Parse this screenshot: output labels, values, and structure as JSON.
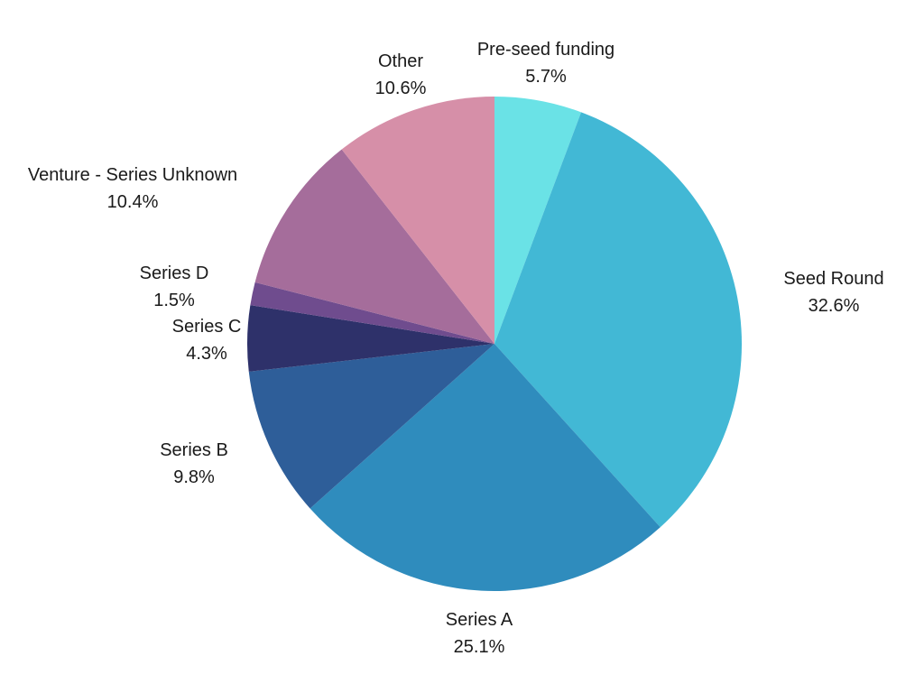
{
  "chart_data": {
    "type": "pie",
    "slices": [
      {
        "label": "Pre-seed funding",
        "value": 5.7,
        "value_label": "5.7%",
        "color": "#6ae2e6"
      },
      {
        "label": "Seed Round",
        "value": 32.6,
        "value_label": "32.6%",
        "color": "#42b8d5"
      },
      {
        "label": "Series A",
        "value": 25.1,
        "value_label": "25.1%",
        "color": "#2f8cbd"
      },
      {
        "label": "Series B",
        "value": 9.8,
        "value_label": "9.8%",
        "color": "#2e5e99"
      },
      {
        "label": "Series C",
        "value": 4.3,
        "value_label": "4.3%",
        "color": "#2e316a"
      },
      {
        "label": "Series D",
        "value": 1.5,
        "value_label": "1.5%",
        "color": "#6f4c8e"
      },
      {
        "label": "Venture - Series Unknown",
        "value": 10.4,
        "value_label": "10.4%",
        "color": "#a56d9b"
      },
      {
        "label": "Other",
        "value": 10.6,
        "value_label": "10.6%",
        "color": "#d68fa8"
      }
    ],
    "start_angle_deg": 0,
    "direction": "clockwise",
    "legend": "none"
  }
}
